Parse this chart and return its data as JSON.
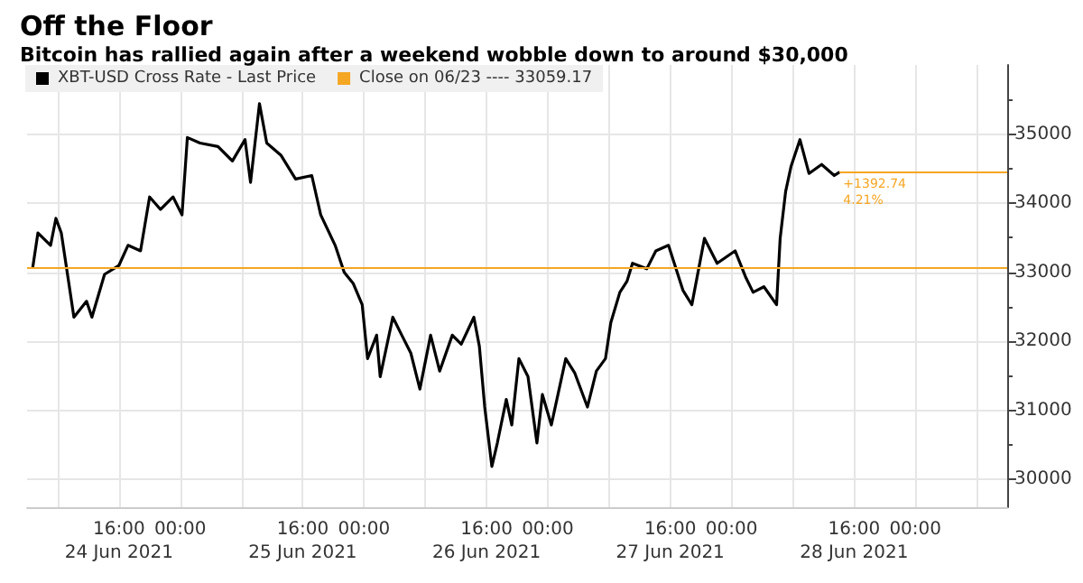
{
  "chart_data": {
    "type": "line",
    "title": "Off the Floor",
    "subtitle": "Bitcoin has rallied again after a weekend wobble down to around $30,000",
    "x": [
      "2021-06-24T04:43",
      "2021-06-24T05:25",
      "2021-06-24T07:04",
      "2021-06-24T07:46",
      "2021-06-24T08:28",
      "2021-06-24T09:25",
      "2021-06-24T10:07",
      "2021-06-24T11:46",
      "2021-06-24T12:28",
      "2021-06-24T14:07",
      "2021-06-24T16:00",
      "2021-06-24T17:11",
      "2021-06-24T18:49",
      "2021-06-24T20:00",
      "2021-06-24T21:25",
      "2021-06-24T23:04",
      "2021-06-25T00:14",
      "2021-06-25T00:56",
      "2021-06-25T02:35",
      "2021-06-25T04:56",
      "2021-06-25T06:49",
      "2021-06-25T08:28",
      "2021-06-25T09:11",
      "2021-06-25T10:21",
      "2021-06-25T11:18",
      "2021-06-25T13:11",
      "2021-06-25T15:04",
      "2021-06-25T17:11",
      "2021-06-25T18:21",
      "2021-06-25T20:14",
      "2021-06-25T21:25",
      "2021-06-25T22:35",
      "2021-06-25T23:46",
      "2021-06-26T00:28",
      "2021-06-26T01:39",
      "2021-06-26T02:07",
      "2021-06-26T03:46",
      "2021-06-26T04:56",
      "2021-06-26T06:07",
      "2021-06-26T07:18",
      "2021-06-26T08:42",
      "2021-06-26T09:53",
      "2021-06-26T11:32",
      "2021-06-26T12:42",
      "2021-06-26T14:21",
      "2021-06-26T15:04",
      "2021-06-26T15:46",
      "2021-06-26T16:42",
      "2021-06-26T17:25",
      "2021-06-26T18:35",
      "2021-06-26T19:18",
      "2021-06-26T20:14",
      "2021-06-26T21:25",
      "2021-06-26T22:35",
      "2021-06-26T23:18",
      "2021-06-27T00:28",
      "2021-06-27T02:21",
      "2021-06-27T03:32",
      "2021-06-27T05:11",
      "2021-06-27T06:21",
      "2021-06-27T07:32",
      "2021-06-27T08:14",
      "2021-06-27T09:25",
      "2021-06-27T10:21",
      "2021-06-27T11:04",
      "2021-06-27T12:56",
      "2021-06-27T14:07",
      "2021-06-27T15:46",
      "2021-06-27T17:39",
      "2021-06-27T18:49",
      "2021-06-27T20:28",
      "2021-06-27T22:07",
      "2021-06-28T00:28",
      "2021-06-28T01:53",
      "2021-06-28T02:49",
      "2021-06-28T04:14",
      "2021-06-28T05:53",
      "2021-06-28T06:21",
      "2021-06-28T07:04",
      "2021-06-28T07:46",
      "2021-06-28T08:56",
      "2021-06-28T10:07",
      "2021-06-28T11:46",
      "2021-06-28T13:25",
      "2021-06-28T14:07"
    ],
    "series": [
      {
        "name": "XBT-USD Cross Rate - Last Price",
        "color": "#000000",
        "values": [
          33050,
          33570,
          33390,
          33780,
          33570,
          32870,
          32350,
          32580,
          32350,
          32970,
          33100,
          33390,
          33310,
          34090,
          33910,
          34090,
          33830,
          34950,
          34870,
          34820,
          34610,
          34920,
          34300,
          35440,
          34870,
          34690,
          34350,
          34400,
          33830,
          33390,
          33000,
          32840,
          32530,
          31750,
          32090,
          31490,
          32350,
          32090,
          31830,
          31310,
          32090,
          31570,
          32090,
          31960,
          32350,
          31930,
          31050,
          30190,
          30530,
          31160,
          30790,
          31750,
          31490,
          30530,
          31230,
          30790,
          31750,
          31540,
          31050,
          31570,
          31750,
          32270,
          32710,
          32870,
          33130,
          33050,
          33310,
          33390,
          32740,
          32530,
          33490,
          33130,
          33310,
          32920,
          32710,
          32790,
          32530,
          33490,
          34170,
          34530,
          34920,
          34430,
          34560,
          34400,
          34450
        ]
      }
    ],
    "xlim": [
      "2021-06-24T04:00",
      "2021-06-29T12:00"
    ],
    "xticks": [
      {
        "value": "2021-06-24T08:00",
        "label": null
      },
      {
        "value": "2021-06-24T16:00",
        "label": "16:00\n24 Jun 2021"
      },
      {
        "value": "2021-06-25T00:00",
        "label": "00:00"
      },
      {
        "value": "2021-06-25T08:00",
        "label": null
      },
      {
        "value": "2021-06-25T16:00",
        "label": "16:00\n25 Jun 2021"
      },
      {
        "value": "2021-06-26T00:00",
        "label": "00:00"
      },
      {
        "value": "2021-06-26T08:00",
        "label": null
      },
      {
        "value": "2021-06-26T16:00",
        "label": "16:00\n26 Jun 2021"
      },
      {
        "value": "2021-06-27T00:00",
        "label": "00:00"
      },
      {
        "value": "2021-06-27T08:00",
        "label": null
      },
      {
        "value": "2021-06-27T16:00",
        "label": "16:00\n27 Jun 2021"
      },
      {
        "value": "2021-06-28T00:00",
        "label": "00:00"
      },
      {
        "value": "2021-06-28T08:00",
        "label": null
      },
      {
        "value": "2021-06-28T16:00",
        "label": "16:00\n28 Jun 2021"
      },
      {
        "value": "2021-06-29T00:00",
        "label": "00:00"
      },
      {
        "value": "2021-06-29T08:00",
        "label": null
      }
    ],
    "ylim": [
      29600,
      36000
    ],
    "yticks": [
      30000,
      31000,
      32000,
      33000,
      34000,
      35000
    ],
    "ref_lines": [
      {
        "axis": "y",
        "value": 33059.17,
        "label": "Close on 06/23 ---- 33059.17",
        "color": "#f5a623"
      },
      {
        "axis": "y",
        "value": 34450,
        "color": "#f5a623"
      }
    ],
    "annotations": [
      "+1392.74",
      "4.21%"
    ],
    "grid": true,
    "legend": "top left",
    "marker": "none",
    "line_style": "solid"
  }
}
